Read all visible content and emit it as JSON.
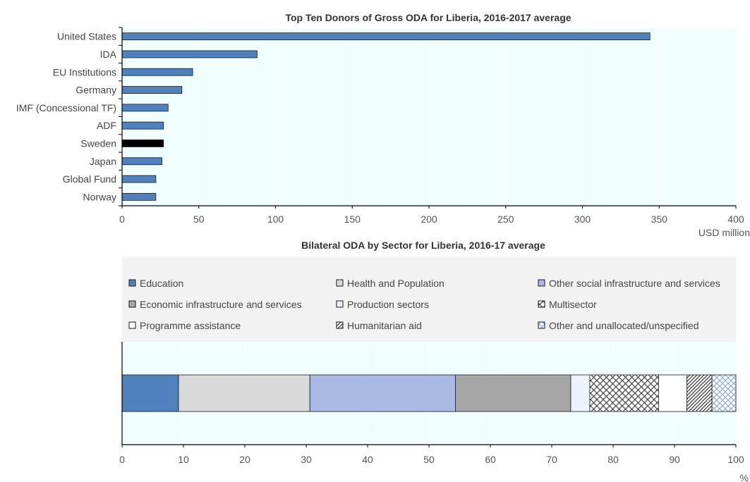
{
  "chart_data": [
    {
      "type": "bar",
      "orientation": "horizontal",
      "title": "Top Ten Donors of Gross ODA for Liberia, 2016-2017 average",
      "xlabel": "USD million",
      "categories": [
        "United States",
        "IDA",
        "EU Institutions",
        "Germany",
        "IMF (Concessional TF)",
        "ADF",
        "Sweden",
        "Japan",
        "Global Fund",
        "Norway"
      ],
      "values": [
        344,
        88,
        46,
        39,
        30,
        27,
        27,
        26,
        22,
        22
      ],
      "highlight": "Sweden",
      "xlim": [
        0,
        400
      ],
      "xticks": [
        0,
        50,
        100,
        150,
        200,
        250,
        300,
        350,
        400
      ],
      "colors": {
        "bar": "#4f81bd",
        "highlight": "#000000"
      }
    },
    {
      "type": "bar",
      "orientation": "horizontal",
      "stacked": true,
      "title": "Bilateral ODA by Sector for Liberia, 2016-17 average",
      "xlabel": "%",
      "xlim": [
        0,
        100
      ],
      "xticks": [
        0,
        10,
        20,
        30,
        40,
        50,
        60,
        70,
        80,
        90,
        100
      ],
      "legend_position": "top",
      "series": [
        {
          "name": "Education",
          "value": 9.2,
          "fill": "#4f81bd",
          "pattern": "solid"
        },
        {
          "name": "Health and Population",
          "value": 21.4,
          "fill": "#d9d9d9",
          "pattern": "solid"
        },
        {
          "name": "Other social infrastructure and services",
          "value": 23.7,
          "fill": "#a9b9e3",
          "pattern": "solid"
        },
        {
          "name": "Economic infrastructure and services",
          "value": 18.8,
          "fill": "#a6a6a6",
          "pattern": "solid"
        },
        {
          "name": "Production sectors",
          "value": 3.1,
          "fill": "#eef2fa",
          "pattern": "solid"
        },
        {
          "name": "Multisector",
          "value": 11.2,
          "fill": "#ffffff",
          "pattern": "crosshatch"
        },
        {
          "name": "Programme assistance",
          "value": 4.6,
          "fill": "#ffffff",
          "pattern": "solid"
        },
        {
          "name": "Humanitarian aid",
          "value": 4.1,
          "fill": "#ffffff",
          "pattern": "diagonal"
        },
        {
          "name": "Other and unallocated/unspecified",
          "value": 3.9,
          "fill": "#ffffff",
          "pattern": "bluecross"
        }
      ]
    }
  ]
}
